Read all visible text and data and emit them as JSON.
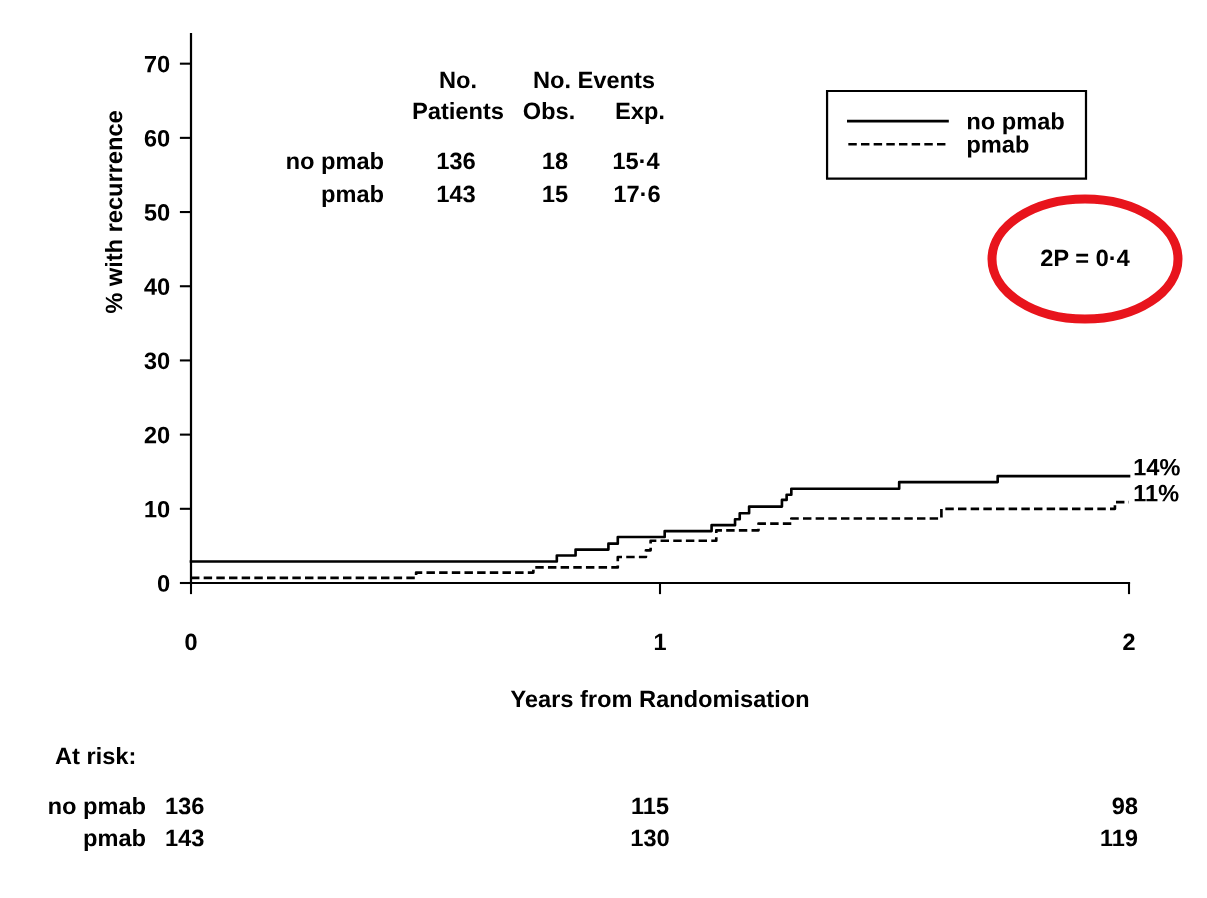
{
  "chart_data": {
    "type": "step",
    "xlabel": "Years from Randomisation",
    "ylabel": "% with recurrence",
    "xlim": [
      0,
      2
    ],
    "ylim": [
      0,
      74
    ],
    "xticks": [
      0,
      1,
      2
    ],
    "yticks": [
      0,
      10,
      20,
      30,
      40,
      50,
      60,
      70
    ],
    "legend": "top right",
    "series": [
      {
        "name": "no pmab",
        "color": "#000000",
        "line_style": "solid",
        "x": [
          0,
          0.78,
          0.82,
          0.89,
          0.91,
          1.01,
          1.11,
          1.16,
          1.17,
          1.19,
          1.26,
          1.27,
          1.28,
          1.51,
          1.72,
          2
        ],
        "values": [
          2.9,
          3.7,
          4.5,
          5.3,
          6.2,
          7.0,
          7.8,
          8.6,
          9.4,
          10.3,
          11.2,
          11.9,
          12.7,
          13.6,
          14.4,
          14.4
        ]
      },
      {
        "name": "pmab",
        "color": "#000000",
        "line_style": "dashed",
        "x": [
          0,
          0.48,
          0.73,
          0.91,
          0.97,
          0.98,
          1.12,
          1.21,
          1.28,
          1.6,
          1.97,
          2
        ],
        "values": [
          0.7,
          1.4,
          2.1,
          3.5,
          4.4,
          5.7,
          7.1,
          8.0,
          8.7,
          10.0,
          10.9,
          10.9
        ]
      }
    ],
    "annotations": [
      "No.",
      "Patients",
      "No. Events",
      "Obs.",
      "Exp.",
      "no pmab",
      "136",
      "18",
      "15·4",
      "pmab",
      "143",
      "15",
      "17·6",
      "2P = 0·4",
      "At risk:",
      "no pmab",
      "136",
      "115",
      "98",
      "pmab",
      "143",
      "130",
      "119",
      {
        "text": "14%",
        "x": 2,
        "y": 14.4
      },
      {
        "text": "11%",
        "x": 2,
        "y": 10.9
      }
    ]
  }
}
